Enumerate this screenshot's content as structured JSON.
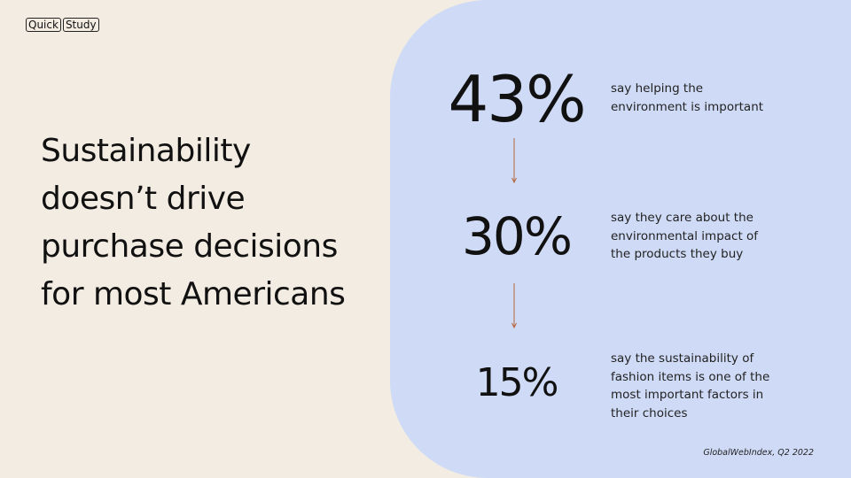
{
  "logo": {
    "word1": "Quick",
    "word2": "Study"
  },
  "headline": "Sustainability doesn’t drive purchase decisions for most Americans",
  "stats": [
    {
      "value": "43%",
      "text": "say helping the\nenvironment is important"
    },
    {
      "value": "30%",
      "text": "say they care about the\nenvironmental impact of\nthe products they buy"
    },
    {
      "value": "15%",
      "text": "say the sustainability of\nfashion items is one of the\nmost important factors in\ntheir choices"
    }
  ],
  "source": "GlobalWebIndex, Q2 2022",
  "colors": {
    "background": "#f3ece2",
    "panel": "#cfdbf6",
    "arrow": "#b5643f",
    "text": "#111111"
  },
  "icons": [
    "down-arrow-icon",
    "down-arrow-icon"
  ]
}
